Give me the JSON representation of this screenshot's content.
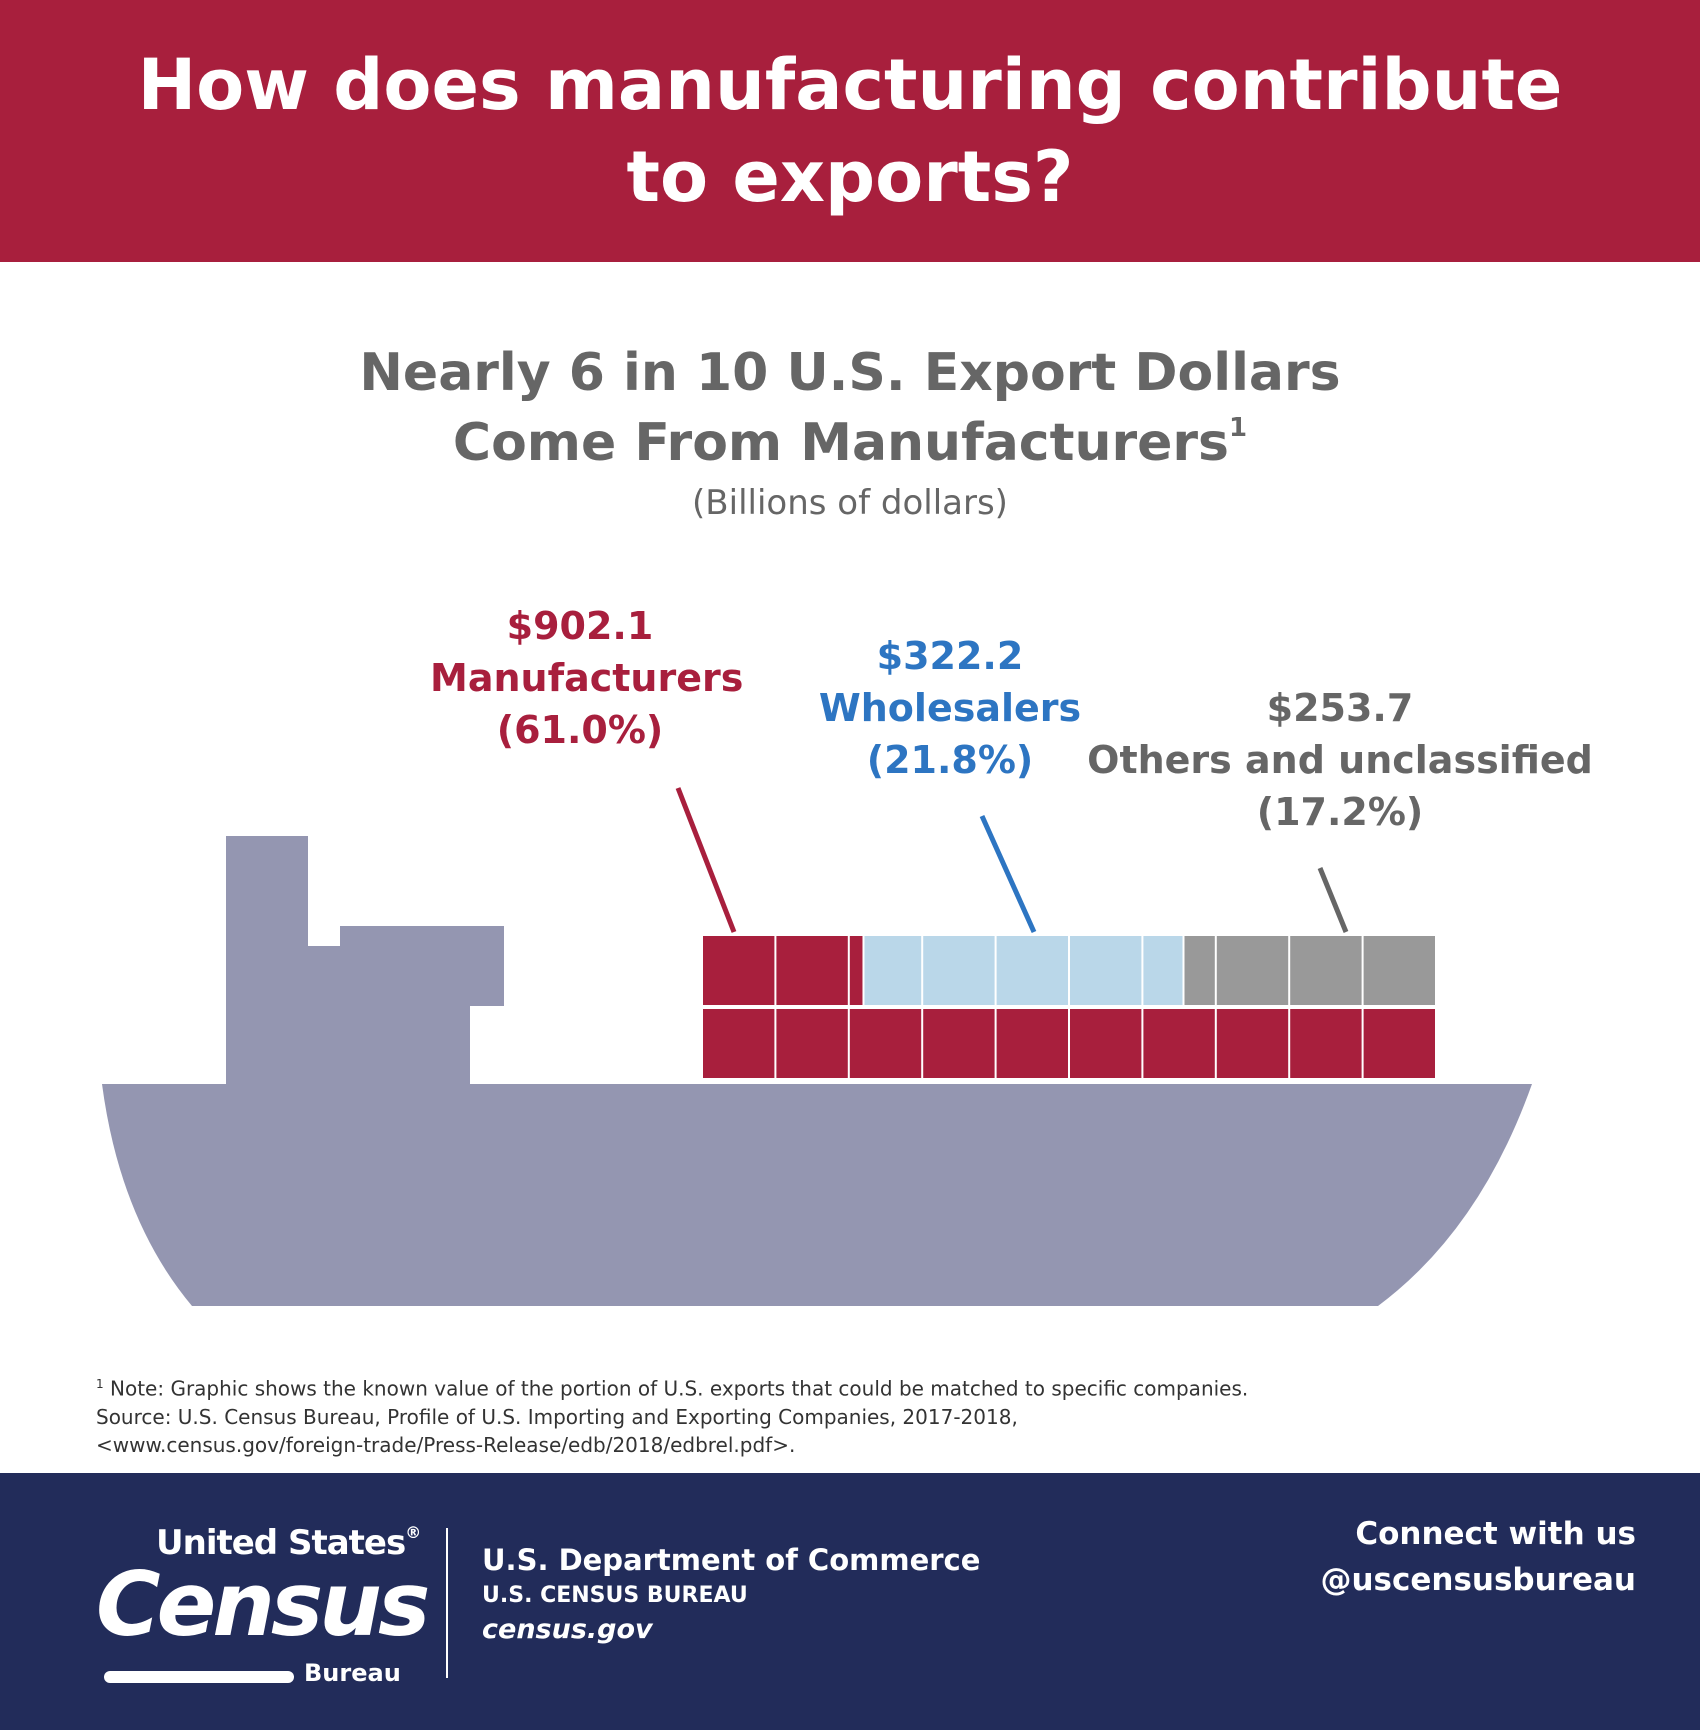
{
  "header": {
    "title_line1": "How does manufacturing contribute",
    "title_line2": "to exports?"
  },
  "subtitle": {
    "line1": "Nearly 6 in 10 U.S. Export Dollars",
    "line2": "Come From Manufacturers",
    "footnote_mark": "1",
    "unit": "(Billions of dollars)"
  },
  "chart_data": {
    "type": "pie",
    "unit": "(Billions of dollars)",
    "categories": [
      "Manufacturers",
      "Wholesalers",
      "Others and unclassified"
    ],
    "values": [
      902.1,
      322.2,
      253.7
    ],
    "percentages": [
      61.0,
      21.8,
      17.2
    ],
    "value_labels": [
      "$902.1",
      "$322.2",
      "$253.7"
    ],
    "percent_labels": [
      "(61.0%)",
      "(21.8%)",
      "(17.2%)"
    ],
    "colors": [
      "#a81f3d",
      "#bad7e9",
      "#999999"
    ],
    "label_colors": [
      "#a81f3d",
      "#2d75c2",
      "#666666"
    ],
    "total_containers": 20
  },
  "ship": {
    "hull_color": "#9496b1"
  },
  "notes": {
    "mark": "1",
    "line1": "Note: Graphic shows the known value of the portion of U.S. exports that could be matched to specific companies.",
    "line2": "Source: U.S. Census Bureau, Profile of U.S. Importing and Exporting Companies, 2017-2018,",
    "line3": "<www.census.gov/foreign-trade/Press-Release/edb/2018/edbrel.pdf>."
  },
  "footer": {
    "logo_top": "United States",
    "logo_reg": "®",
    "logo_main": "Census",
    "logo_bottom": "Bureau",
    "dept": "U.S. Department of Commerce",
    "bureau": "U.S. CENSUS BUREAU",
    "site": "census.gov",
    "connect": "Connect with us",
    "handle": "@uscensusbureau"
  }
}
